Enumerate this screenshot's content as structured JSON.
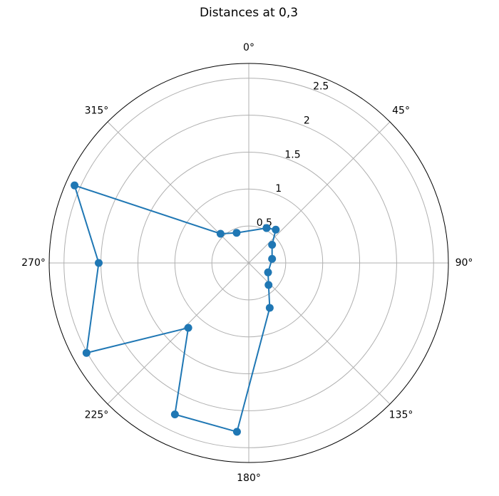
{
  "chart_data": {
    "type": "polar",
    "title": "Distances at 0,3",
    "theta_direction": "clockwise",
    "theta_zero": "N",
    "series": [
      {
        "color": "#1f77b4",
        "x": [
          27,
          39,
          52,
          80,
          116,
          138,
          155,
          184,
          206,
          223,
          241,
          270,
          294,
          316,
          338,
          27
        ],
        "values": [
          0.53,
          0.58,
          0.4,
          0.32,
          0.29,
          0.4,
          0.67,
          2.29,
          2.28,
          1.2,
          2.51,
          2.03,
          2.58,
          0.55,
          0.44,
          0.53
        ]
      }
    ],
    "xticks": [
      {
        "value": 0,
        "label": "0°"
      },
      {
        "value": 45,
        "label": "45°"
      },
      {
        "value": 90,
        "label": "90°"
      },
      {
        "value": 135,
        "label": "135°"
      },
      {
        "value": 180,
        "label": "180°"
      },
      {
        "value": 225,
        "label": "225°"
      },
      {
        "value": 270,
        "label": "270°"
      },
      {
        "value": 315,
        "label": "315°"
      }
    ],
    "ylim": [
      0,
      2.7
    ],
    "yticks": [
      0.5,
      1.0,
      1.5,
      2.0,
      2.5
    ],
    "grid": true
  }
}
